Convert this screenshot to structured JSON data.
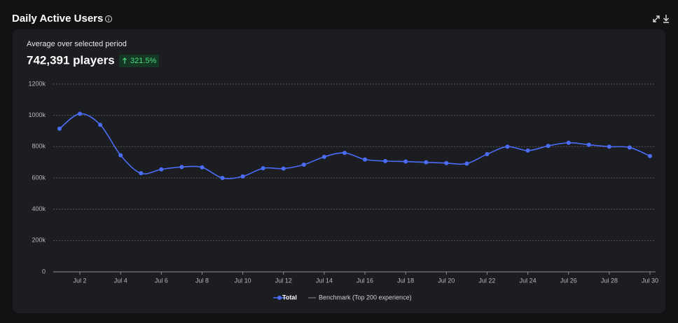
{
  "header": {
    "title": "Daily Active Users"
  },
  "summary": {
    "label": "Average over selected period",
    "value": "742,391 players",
    "change": "321.5%"
  },
  "chart_data": {
    "type": "line",
    "categories": [
      null,
      "Jul 2",
      null,
      "Jul 4",
      null,
      "Jul 6",
      null,
      "Jul 8",
      null,
      "Jul 10",
      null,
      "Jul 12",
      null,
      "Jul 14",
      null,
      "Jul 16",
      null,
      "Jul 18",
      null,
      "Jul 20",
      null,
      "Jul 22",
      null,
      "Jul 24",
      null,
      "Jul 26",
      null,
      "Jul 28",
      null,
      "Jul 30"
    ],
    "series": [
      {
        "name": "Total",
        "color": "#4a6cf7",
        "values": [
          915,
          1010,
          940,
          745,
          630,
          655,
          670,
          668,
          600,
          610,
          662,
          660,
          685,
          735,
          760,
          718,
          708,
          705,
          700,
          695,
          692,
          752,
          800,
          775,
          805,
          825,
          812,
          800,
          795,
          740
        ]
      },
      {
        "name": "Benchmark (Top 200 experience)",
        "color": "#8a8d93",
        "values": [
          null,
          null,
          null,
          null,
          null,
          null,
          null,
          null,
          null,
          null,
          null,
          null,
          null,
          null,
          null,
          null,
          null,
          null,
          null,
          null,
          null,
          null,
          null,
          null,
          null,
          null,
          null,
          null,
          null,
          null
        ]
      }
    ],
    "ylim": [
      0,
      1200
    ],
    "yticks": [
      0,
      {
        "value": 200,
        "label": "200k"
      },
      {
        "value": 400,
        "label": "400k"
      },
      {
        "value": 600,
        "label": "600k"
      },
      {
        "value": 800,
        "label": "800k"
      },
      {
        "value": 1000,
        "label": "1000k"
      },
      {
        "value": 1200,
        "label": "1200k"
      }
    ],
    "grid": true
  }
}
